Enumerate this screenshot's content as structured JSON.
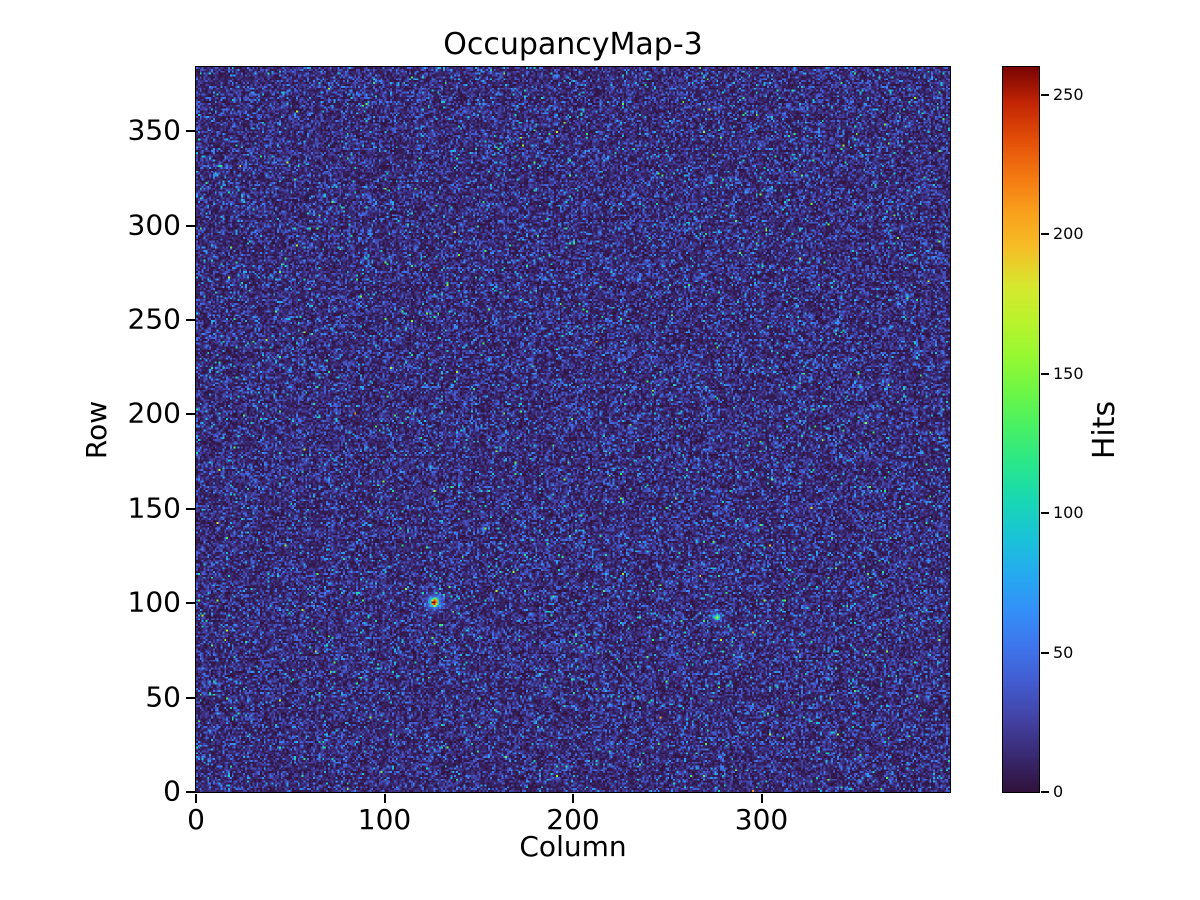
{
  "figure": {
    "background_color": "#ffffff",
    "spine_color": "#000000",
    "text_color": "#000000"
  },
  "chart_data": {
    "type": "heatmap",
    "title": "OccupancyMap-3",
    "xlabel": "Column",
    "ylabel": "Row",
    "colorbar_label": "Hits",
    "xlim": [
      0,
      400
    ],
    "ylim": [
      0,
      384
    ],
    "grid_cols": 400,
    "grid_rows": 384,
    "x_ticks": [
      0,
      100,
      200,
      300
    ],
    "y_ticks": [
      0,
      50,
      100,
      150,
      200,
      250,
      300,
      350
    ],
    "colorbar_ticks": [
      0,
      50,
      100,
      150,
      200,
      250
    ],
    "vmin": 0,
    "vmax": 260,
    "grid": false,
    "colormap": "turbo",
    "colormap_stops": [
      "#30123b",
      "#392972",
      "#4342a4",
      "#425cd0",
      "#3e75ec",
      "#3490f8",
      "#25aaf0",
      "#1ac3d8",
      "#18d7b5",
      "#28e68d",
      "#46f067",
      "#6cf647",
      "#95f832",
      "#baf32c",
      "#d8e72e",
      "#f5bf26",
      "#f9a01c",
      "#f47812",
      "#e34f08",
      "#c42603",
      "#7a0403"
    ],
    "background_noise": {
      "distribution": "exponential",
      "mean_hits": 19,
      "seed": 1337
    },
    "hotspots": [
      {
        "col": 126,
        "row": 100,
        "peak_hits": 245,
        "sigma": 1.2,
        "halo_hits": 55,
        "halo_sigma": 3.0
      },
      {
        "col": 276,
        "row": 92,
        "peak_hits": 160,
        "sigma": 0.9,
        "halo_hits": 25,
        "halo_sigma": 2.0
      }
    ]
  }
}
